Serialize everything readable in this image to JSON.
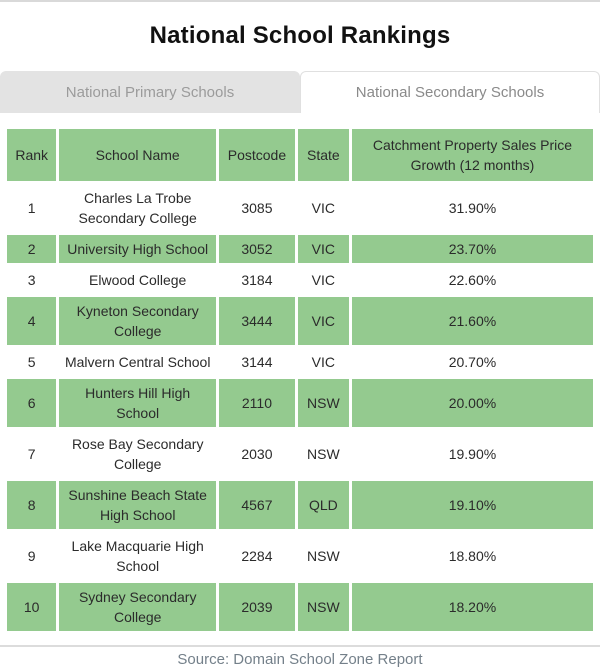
{
  "page": {
    "title": "National School Rankings",
    "source": "Source: Domain School Zone Report"
  },
  "tabs": [
    {
      "label": "National Primary Schools",
      "active": false
    },
    {
      "label": "National Secondary Schools",
      "active": true
    }
  ],
  "table": {
    "headers": [
      "Rank",
      "School Name",
      "Postcode",
      "State",
      "Catchment Property Sales Price Growth (12 months)"
    ],
    "rows": [
      {
        "rank": "1",
        "school": "Charles La Trobe Secondary College",
        "postcode": "3085",
        "state": "VIC",
        "growth": "31.90%"
      },
      {
        "rank": "2",
        "school": "University High School",
        "postcode": "3052",
        "state": "VIC",
        "growth": "23.70%"
      },
      {
        "rank": "3",
        "school": "Elwood College",
        "postcode": "3184",
        "state": "VIC",
        "growth": "22.60%"
      },
      {
        "rank": "4",
        "school": "Kyneton Secondary College",
        "postcode": "3444",
        "state": "VIC",
        "growth": "21.60%"
      },
      {
        "rank": "5",
        "school": "Malvern Central School",
        "postcode": "3144",
        "state": "VIC",
        "growth": "20.70%"
      },
      {
        "rank": "6",
        "school": "Hunters Hill High School",
        "postcode": "2110",
        "state": "NSW",
        "growth": "20.00%"
      },
      {
        "rank": "7",
        "school": "Rose Bay Secondary College",
        "postcode": "2030",
        "state": "NSW",
        "growth": "19.90%"
      },
      {
        "rank": "8",
        "school": "Sunshine Beach State High School",
        "postcode": "4567",
        "state": "QLD",
        "growth": "19.10%"
      },
      {
        "rank": "9",
        "school": "Lake Macquarie High School",
        "postcode": "2284",
        "state": "NSW",
        "growth": "18.80%"
      },
      {
        "rank": "10",
        "school": "Sydney Secondary College",
        "postcode": "2039",
        "state": "NSW",
        "growth": "18.20%"
      }
    ]
  },
  "colors": {
    "table_green": "#94ca8f",
    "tab_inactive_bg": "#e3e3e3",
    "tab_inactive_text": "#9b9b9b",
    "tab_active_text": "#8a8a8a",
    "border_gray": "#d9d9d9",
    "source_text": "#74808a",
    "cell_text": "#2b2b2b"
  }
}
